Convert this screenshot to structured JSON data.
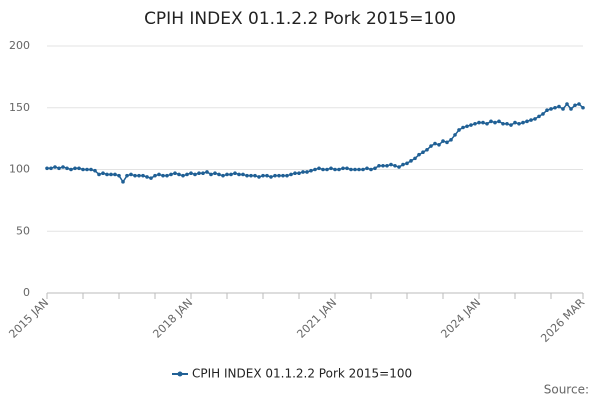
{
  "chart_data": {
    "type": "line",
    "title": "CPIH INDEX 01.1.2.2 Pork 2015=100",
    "categories": [
      "2015 JAN",
      null,
      null,
      null,
      null,
      null,
      null,
      null,
      null,
      null,
      null,
      null,
      null,
      null,
      null,
      null,
      null,
      null,
      null,
      null,
      null,
      null,
      null,
      null,
      null,
      null,
      null,
      null,
      null,
      null,
      null,
      null,
      null,
      null,
      null,
      null,
      "2018 JAN",
      null,
      null,
      null,
      null,
      null,
      null,
      null,
      null,
      null,
      null,
      null,
      null,
      null,
      null,
      null,
      null,
      null,
      null,
      null,
      null,
      null,
      null,
      null,
      null,
      null,
      null,
      null,
      null,
      null,
      null,
      null,
      null,
      null,
      null,
      null,
      "2021 JAN",
      null,
      null,
      null,
      null,
      null,
      null,
      null,
      null,
      null,
      null,
      null,
      null,
      null,
      null,
      null,
      null,
      null,
      null,
      null,
      null,
      null,
      null,
      null,
      null,
      null,
      null,
      null,
      null,
      null,
      null,
      null,
      null,
      null,
      null,
      null,
      "2024 JAN",
      null,
      null,
      null,
      null,
      null,
      null,
      null,
      null,
      null,
      null,
      null,
      null,
      null,
      null,
      null,
      null,
      null,
      null,
      null,
      null,
      null,
      null,
      null,
      null,
      null,
      "2026 MAR"
    ],
    "series": [
      {
        "name": "CPIH INDEX 01.1.2.2 Pork 2015=100",
        "color": "#206095",
        "values": [
          101,
          101,
          102,
          101,
          102,
          101,
          100,
          101,
          101,
          100,
          100,
          100,
          99,
          96,
          97,
          96,
          96,
          96,
          95,
          90,
          95,
          96,
          95,
          95,
          95,
          94,
          93,
          95,
          96,
          95,
          95,
          96,
          97,
          96,
          95,
          96,
          97,
          96,
          97,
          97,
          98,
          96,
          97,
          96,
          95,
          96,
          96,
          97,
          96,
          96,
          95,
          95,
          95,
          94,
          95,
          95,
          94,
          95,
          95,
          95,
          95,
          96,
          97,
          97,
          98,
          98,
          99,
          100,
          101,
          100,
          100,
          101,
          100,
          100,
          101,
          101,
          100,
          100,
          100,
          100,
          101,
          100,
          101,
          103,
          103,
          103,
          104,
          103,
          102,
          104,
          105,
          107,
          109,
          112,
          114,
          116,
          119,
          121,
          120,
          123,
          122,
          124,
          128,
          132,
          134,
          135,
          136,
          137,
          138,
          138,
          137,
          139,
          138,
          139,
          137,
          137,
          136,
          138,
          137,
          138,
          139,
          140,
          141,
          143,
          145,
          148,
          149,
          150,
          151,
          149,
          153,
          149,
          152,
          153,
          150
        ]
      }
    ],
    "ylim": [
      0,
      200
    ],
    "yticks": [
      0,
      50,
      100,
      150,
      200
    ],
    "grid": true,
    "legend": "bottom",
    "source": "Source:"
  }
}
